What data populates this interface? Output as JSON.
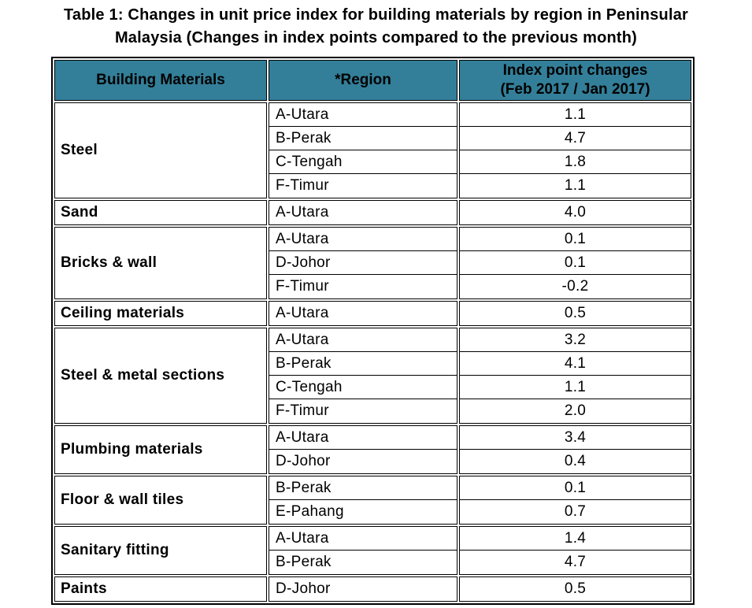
{
  "title": {
    "line1": "Table 1: Changes in unit price index for building materials by region in Peninsular",
    "line2": "Malaysia (Changes in index points compared to the previous month)"
  },
  "colors": {
    "header_bg": "#337F99",
    "border": "#000000",
    "text": "#000000",
    "background": "#FFFFFF"
  },
  "table": {
    "headers": {
      "materials": "Building Materials",
      "region": "*Region",
      "index_line1": "Index point changes",
      "index_line2": "(Feb 2017 / Jan 2017)"
    },
    "groups": [
      {
        "material": "Steel",
        "rows": [
          {
            "region": "A-Utara",
            "value": "1.1"
          },
          {
            "region": "B-Perak",
            "value": "4.7"
          },
          {
            "region": "C-Tengah",
            "value": "1.8"
          },
          {
            "region": "F-Timur",
            "value": "1.1"
          }
        ]
      },
      {
        "material": "Sand",
        "rows": [
          {
            "region": "A-Utara",
            "value": "4.0"
          }
        ]
      },
      {
        "material": "Bricks & wall",
        "rows": [
          {
            "region": "A-Utara",
            "value": "0.1"
          },
          {
            "region": "D-Johor",
            "value": "0.1"
          },
          {
            "region": "F-Timur",
            "value": "-0.2"
          }
        ]
      },
      {
        "material": "Ceiling materials",
        "rows": [
          {
            "region": "A-Utara",
            "value": "0.5"
          }
        ]
      },
      {
        "material": "Steel & metal sections",
        "rows": [
          {
            "region": "A-Utara",
            "value": "3.2"
          },
          {
            "region": "B-Perak",
            "value": "4.1"
          },
          {
            "region": "C-Tengah",
            "value": "1.1"
          },
          {
            "region": "F-Timur",
            "value": "2.0"
          }
        ]
      },
      {
        "material": "Plumbing materials",
        "rows": [
          {
            "region": "A-Utara",
            "value": "3.4"
          },
          {
            "region": "D-Johor",
            "value": "0.4"
          }
        ]
      },
      {
        "material": "Floor & wall tiles",
        "rows": [
          {
            "region": "B-Perak",
            "value": "0.1"
          },
          {
            "region": "E-Pahang",
            "value": "0.7"
          }
        ]
      },
      {
        "material": "Sanitary fitting",
        "rows": [
          {
            "region": "A-Utara",
            "value": "1.4"
          },
          {
            "region": "B-Perak",
            "value": "4.7"
          }
        ]
      },
      {
        "material": "Paints",
        "rows": [
          {
            "region": "D-Johor",
            "value": "0.5"
          }
        ]
      }
    ]
  }
}
